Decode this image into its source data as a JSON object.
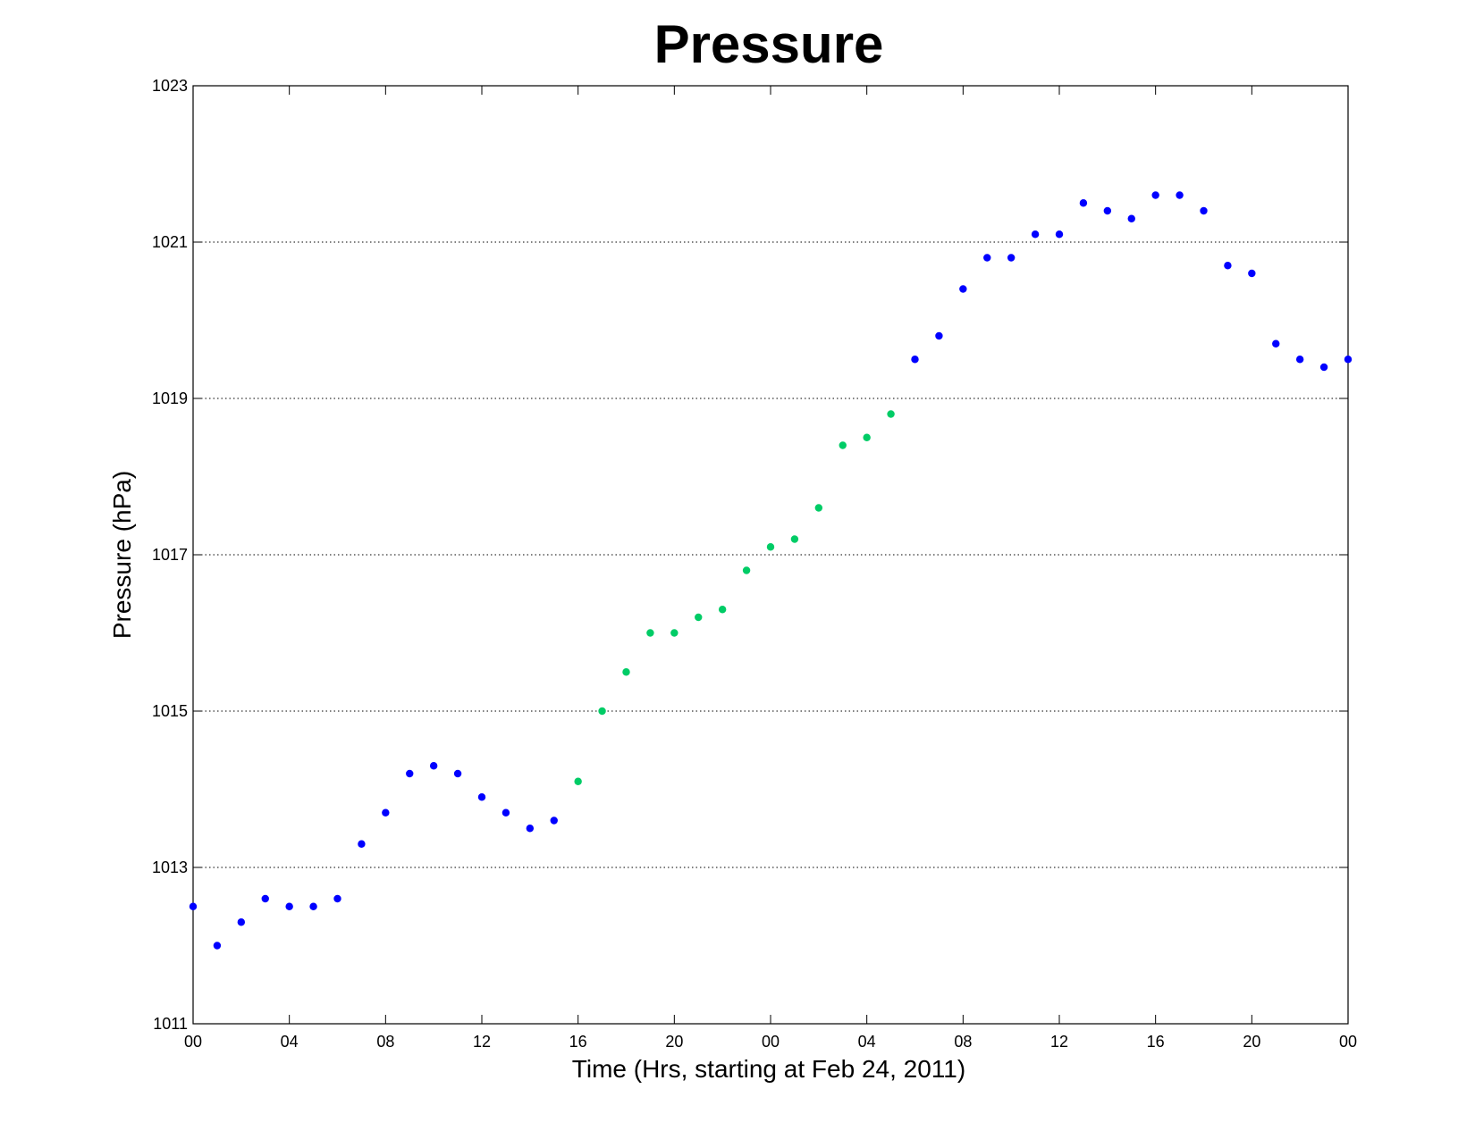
{
  "chart_data": {
    "type": "scatter",
    "title": "Pressure",
    "xlabel": "Time (Hrs, starting at Feb 24, 2011)",
    "ylabel": "Pressure (hPa)",
    "xlim": [
      0,
      48
    ],
    "ylim": [
      1011,
      1023
    ],
    "yticks": [
      1011,
      1013,
      1015,
      1017,
      1019,
      1021,
      1023
    ],
    "xticks": [
      {
        "x": 0,
        "label": "00"
      },
      {
        "x": 4,
        "label": "04"
      },
      {
        "x": 8,
        "label": "08"
      },
      {
        "x": 12,
        "label": "12"
      },
      {
        "x": 16,
        "label": "16"
      },
      {
        "x": 20,
        "label": "20"
      },
      {
        "x": 24,
        "label": "00"
      },
      {
        "x": 28,
        "label": "04"
      },
      {
        "x": 32,
        "label": "08"
      },
      {
        "x": 36,
        "label": "12"
      },
      {
        "x": 40,
        "label": "16"
      },
      {
        "x": 44,
        "label": "20"
      },
      {
        "x": 48,
        "label": "00"
      }
    ],
    "grid": "horizontal-dotted",
    "colors": {
      "blue": "#0000ff",
      "green": "#00cc66"
    },
    "points": [
      {
        "x": 0,
        "y": 1012.5,
        "color": "blue"
      },
      {
        "x": 1,
        "y": 1012.0,
        "color": "blue"
      },
      {
        "x": 2,
        "y": 1012.3,
        "color": "blue"
      },
      {
        "x": 3,
        "y": 1012.6,
        "color": "blue"
      },
      {
        "x": 4,
        "y": 1012.5,
        "color": "blue"
      },
      {
        "x": 5,
        "y": 1012.5,
        "color": "blue"
      },
      {
        "x": 6,
        "y": 1012.6,
        "color": "blue"
      },
      {
        "x": 7,
        "y": 1013.3,
        "color": "blue"
      },
      {
        "x": 8,
        "y": 1013.7,
        "color": "blue"
      },
      {
        "x": 9,
        "y": 1014.2,
        "color": "blue"
      },
      {
        "x": 10,
        "y": 1014.3,
        "color": "blue"
      },
      {
        "x": 11,
        "y": 1014.2,
        "color": "blue"
      },
      {
        "x": 12,
        "y": 1013.9,
        "color": "blue"
      },
      {
        "x": 13,
        "y": 1013.7,
        "color": "blue"
      },
      {
        "x": 14,
        "y": 1013.5,
        "color": "blue"
      },
      {
        "x": 15,
        "y": 1013.6,
        "color": "blue"
      },
      {
        "x": 16,
        "y": 1014.1,
        "color": "green"
      },
      {
        "x": 17,
        "y": 1015.0,
        "color": "green"
      },
      {
        "x": 18,
        "y": 1015.5,
        "color": "green"
      },
      {
        "x": 19,
        "y": 1016.0,
        "color": "green"
      },
      {
        "x": 20,
        "y": 1016.0,
        "color": "green"
      },
      {
        "x": 21,
        "y": 1016.2,
        "color": "green"
      },
      {
        "x": 22,
        "y": 1016.3,
        "color": "green"
      },
      {
        "x": 23,
        "y": 1016.8,
        "color": "green"
      },
      {
        "x": 24,
        "y": 1017.1,
        "color": "green"
      },
      {
        "x": 25,
        "y": 1017.2,
        "color": "green"
      },
      {
        "x": 26,
        "y": 1017.6,
        "color": "green"
      },
      {
        "x": 27,
        "y": 1018.4,
        "color": "green"
      },
      {
        "x": 28,
        "y": 1018.5,
        "color": "green"
      },
      {
        "x": 29,
        "y": 1018.8,
        "color": "green"
      },
      {
        "x": 30,
        "y": 1019.5,
        "color": "blue"
      },
      {
        "x": 31,
        "y": 1019.8,
        "color": "blue"
      },
      {
        "x": 32,
        "y": 1020.4,
        "color": "blue"
      },
      {
        "x": 33,
        "y": 1020.8,
        "color": "blue"
      },
      {
        "x": 34,
        "y": 1020.8,
        "color": "blue"
      },
      {
        "x": 35,
        "y": 1021.1,
        "color": "blue"
      },
      {
        "x": 36,
        "y": 1021.1,
        "color": "blue"
      },
      {
        "x": 37,
        "y": 1021.5,
        "color": "blue"
      },
      {
        "x": 38,
        "y": 1021.4,
        "color": "blue"
      },
      {
        "x": 39,
        "y": 1021.3,
        "color": "blue"
      },
      {
        "x": 40,
        "y": 1021.6,
        "color": "blue"
      },
      {
        "x": 41,
        "y": 1021.6,
        "color": "blue"
      },
      {
        "x": 42,
        "y": 1021.4,
        "color": "blue"
      },
      {
        "x": 43,
        "y": 1020.7,
        "color": "blue"
      },
      {
        "x": 44,
        "y": 1020.6,
        "color": "blue"
      },
      {
        "x": 45,
        "y": 1019.7,
        "color": "blue"
      },
      {
        "x": 46,
        "y": 1019.5,
        "color": "blue"
      },
      {
        "x": 47,
        "y": 1019.4,
        "color": "blue"
      },
      {
        "x": 48,
        "y": 1019.5,
        "color": "blue"
      }
    ]
  }
}
